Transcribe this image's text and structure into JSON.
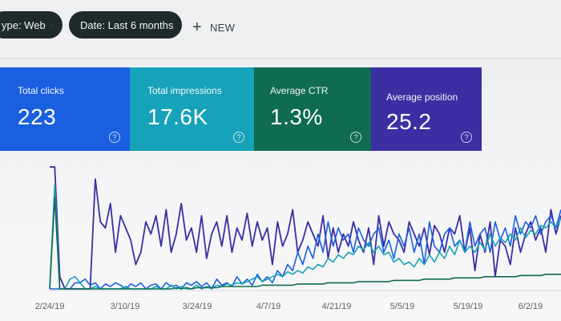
{
  "filters": {
    "type_chip": "ype: Web",
    "date_chip": "Date: Last 6 months",
    "new_label": "NEW"
  },
  "icons": {
    "type_chip_edit": "pencil-icon",
    "date_chip_edit": "pencil-icon",
    "new": "plus-icon",
    "card_help": "help-circle-icon"
  },
  "cards": [
    {
      "label": "Total clicks",
      "value": "223",
      "color": "#1a5fe0"
    },
    {
      "label": "Total impressions",
      "value": "17.6K",
      "color": "#16a2b8"
    },
    {
      "label": "Average CTR",
      "value": "1.3%",
      "color": "#0f6b52"
    },
    {
      "label": "Average position",
      "value": "25.2",
      "color": "#3c2ea3"
    }
  ],
  "chart_data": {
    "type": "line",
    "x_tick_labels": [
      "2/24/19",
      "3/10/19",
      "3/24/19",
      "4/7/19",
      "4/21/19",
      "5/5/19",
      "5/19/19",
      "6/2/19"
    ],
    "yaxis_visible": false,
    "series": [
      {
        "color": "#3c2ea3",
        "values": [
          1.0,
          1.0,
          0.1,
          0.0,
          0.0,
          0.0,
          0.0,
          0.0,
          0.0,
          0.9,
          0.55,
          0.5,
          0.7,
          0.3,
          0.6,
          0.5,
          0.4,
          0.2,
          0.3,
          0.55,
          0.45,
          0.6,
          0.35,
          0.65,
          0.3,
          0.45,
          0.7,
          0.4,
          0.5,
          0.3,
          0.6,
          0.25,
          0.45,
          0.55,
          0.35,
          0.6,
          0.3,
          0.5,
          0.4,
          0.62,
          0.35,
          0.55,
          0.4,
          0.5,
          0.2,
          0.55,
          0.35,
          0.45,
          0.65,
          0.3,
          0.4,
          0.55,
          0.45,
          0.35,
          0.6,
          0.25,
          0.5,
          0.3,
          0.45,
          0.35,
          0.55,
          0.4,
          0.3,
          0.5,
          0.2,
          0.6,
          0.35,
          0.55,
          0.45,
          0.4,
          0.3,
          0.55,
          0.45,
          0.35,
          0.5,
          0.28,
          0.52,
          0.45,
          0.3,
          0.5,
          0.45,
          0.6,
          0.3,
          0.5,
          0.15,
          0.45,
          0.3,
          0.55,
          0.1,
          0.4,
          0.35,
          0.2,
          0.5,
          0.3,
          0.45,
          0.55,
          0.4,
          0.5,
          0.3,
          0.65,
          0.45,
          0.6
        ]
      },
      {
        "color": "#1a5fe0",
        "values": [
          0.0,
          0.0,
          0.0,
          0.0,
          0.0,
          0.05,
          0.05,
          0.08,
          0.03,
          0.05,
          0.0,
          0.04,
          0.02,
          0.05,
          0.03,
          0.0,
          0.04,
          0.02,
          0.05,
          0.0,
          0.03,
          0.04,
          0.0,
          0.05,
          0.02,
          0.03,
          0.0,
          0.05,
          0.03,
          0.06,
          0.02,
          0.05,
          0.0,
          0.08,
          0.03,
          0.05,
          0.02,
          0.1,
          0.04,
          0.08,
          0.03,
          0.12,
          0.06,
          0.1,
          0.05,
          0.15,
          0.1,
          0.2,
          0.15,
          0.3,
          0.2,
          0.35,
          0.25,
          0.45,
          0.3,
          0.55,
          0.35,
          0.5,
          0.4,
          0.45,
          0.3,
          0.5,
          0.4,
          0.35,
          0.45,
          0.5,
          0.3,
          0.4,
          0.25,
          0.45,
          0.35,
          0.5,
          0.3,
          0.45,
          0.2,
          0.55,
          0.35,
          0.3,
          0.45,
          0.5,
          0.35,
          0.4,
          0.3,
          0.55,
          0.35,
          0.45,
          0.5,
          0.3,
          0.55,
          0.4,
          0.5,
          0.35,
          0.6,
          0.45,
          0.55,
          0.5,
          0.6,
          0.45,
          0.55,
          0.6,
          0.5,
          0.65
        ]
      },
      {
        "color": "#16a2b8",
        "values": [
          0.0,
          0.85,
          0.0,
          0.0,
          0.08,
          0.1,
          0.05,
          0.0,
          0.0,
          0.02,
          0.0,
          0.0,
          0.0,
          0.0,
          0.0,
          0.02,
          0.0,
          0.0,
          0.0,
          0.0,
          0.0,
          0.02,
          0.0,
          0.0,
          0.03,
          0.0,
          0.02,
          0.0,
          0.0,
          0.03,
          0.0,
          0.02,
          0.0,
          0.03,
          0.02,
          0.04,
          0.03,
          0.05,
          0.04,
          0.06,
          0.08,
          0.1,
          0.06,
          0.08,
          0.1,
          0.12,
          0.1,
          0.14,
          0.12,
          0.15,
          0.13,
          0.18,
          0.16,
          0.2,
          0.18,
          0.25,
          0.22,
          0.28,
          0.25,
          0.3,
          0.28,
          0.35,
          0.32,
          0.38,
          0.3,
          0.35,
          0.28,
          0.3,
          0.22,
          0.25,
          0.2,
          0.22,
          0.18,
          0.25,
          0.2,
          0.28,
          0.22,
          0.3,
          0.25,
          0.35,
          0.28,
          0.4,
          0.3,
          0.35,
          0.3,
          0.38,
          0.32,
          0.45,
          0.35,
          0.42,
          0.38,
          0.45,
          0.4,
          0.5,
          0.42,
          0.48,
          0.45,
          0.52,
          0.5,
          0.55,
          0.5,
          0.58
        ]
      },
      {
        "color": "#0f6b52",
        "values": [
          0.0,
          0.75,
          0.0,
          0.0,
          0.0,
          0.0,
          0.0,
          0.0,
          0.0,
          0.0,
          0.0,
          0.0,
          0.0,
          0.0,
          0.0,
          0.0,
          0.0,
          0.0,
          0.0,
          0.0,
          0.0,
          0.0,
          0.0,
          0.0,
          0.0,
          0.01,
          0.0,
          0.01,
          0.0,
          0.01,
          0.01,
          0.01,
          0.01,
          0.01,
          0.02,
          0.02,
          0.02,
          0.02,
          0.02,
          0.02,
          0.02,
          0.02,
          0.03,
          0.03,
          0.03,
          0.03,
          0.03,
          0.03,
          0.03,
          0.04,
          0.04,
          0.04,
          0.04,
          0.04,
          0.04,
          0.05,
          0.05,
          0.05,
          0.05,
          0.05,
          0.05,
          0.06,
          0.06,
          0.06,
          0.06,
          0.06,
          0.06,
          0.06,
          0.07,
          0.07,
          0.07,
          0.07,
          0.07,
          0.07,
          0.08,
          0.08,
          0.08,
          0.08,
          0.08,
          0.08,
          0.09,
          0.09,
          0.09,
          0.09,
          0.09,
          0.09,
          0.1,
          0.1,
          0.1,
          0.1,
          0.1,
          0.1,
          0.1,
          0.11,
          0.11,
          0.11,
          0.11,
          0.11,
          0.12,
          0.12,
          0.12,
          0.12
        ]
      }
    ]
  }
}
